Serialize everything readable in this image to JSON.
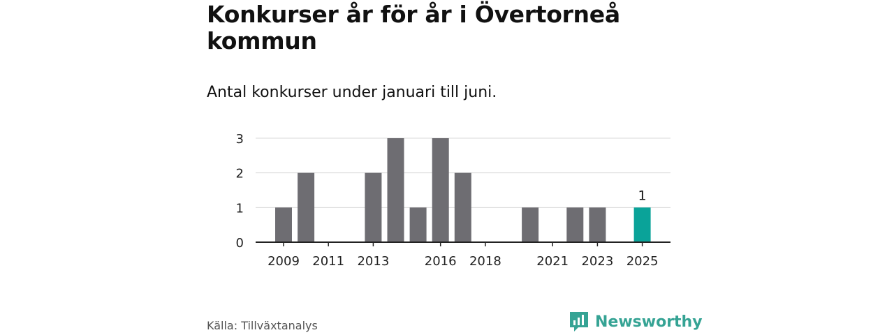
{
  "title": "Konkurser år för år i Övertorneå kommun",
  "subtitle": "Antal konkurser under januari till juni.",
  "source": "Källa: Tillväxtanalys",
  "brand": {
    "name": "Newsworthy",
    "icon": "bar-chart-logo-icon"
  },
  "colors": {
    "bar": "#6e6d72",
    "highlight": "#0aa399",
    "grid": "#d9d9d9",
    "axis": "#222222",
    "brand": "#35a394"
  },
  "chart_data": {
    "type": "bar",
    "categories": [
      "2009",
      "2010",
      "2011",
      "2012",
      "2013",
      "2014",
      "2015",
      "2016",
      "2017",
      "2018",
      "2019",
      "2020",
      "2021",
      "2022",
      "2023",
      "2024",
      "2025"
    ],
    "values": [
      1,
      2,
      0,
      0,
      2,
      3,
      1,
      3,
      2,
      0,
      0,
      1,
      0,
      1,
      1,
      null,
      1
    ],
    "x_tick_labels": [
      "2009",
      "2011",
      "2013",
      "2016",
      "2018",
      "2021",
      "2023",
      "2025"
    ],
    "y_ticks": [
      0,
      1,
      2,
      3
    ],
    "ylim": [
      0,
      3
    ],
    "highlight": {
      "category": "2025",
      "label": "1"
    },
    "title": "Konkurser år för år i Övertorneå kommun",
    "subtitle": "Antal konkurser under januari till juni.",
    "xlabel": "",
    "ylabel": "",
    "grid": true,
    "legend": "none"
  }
}
